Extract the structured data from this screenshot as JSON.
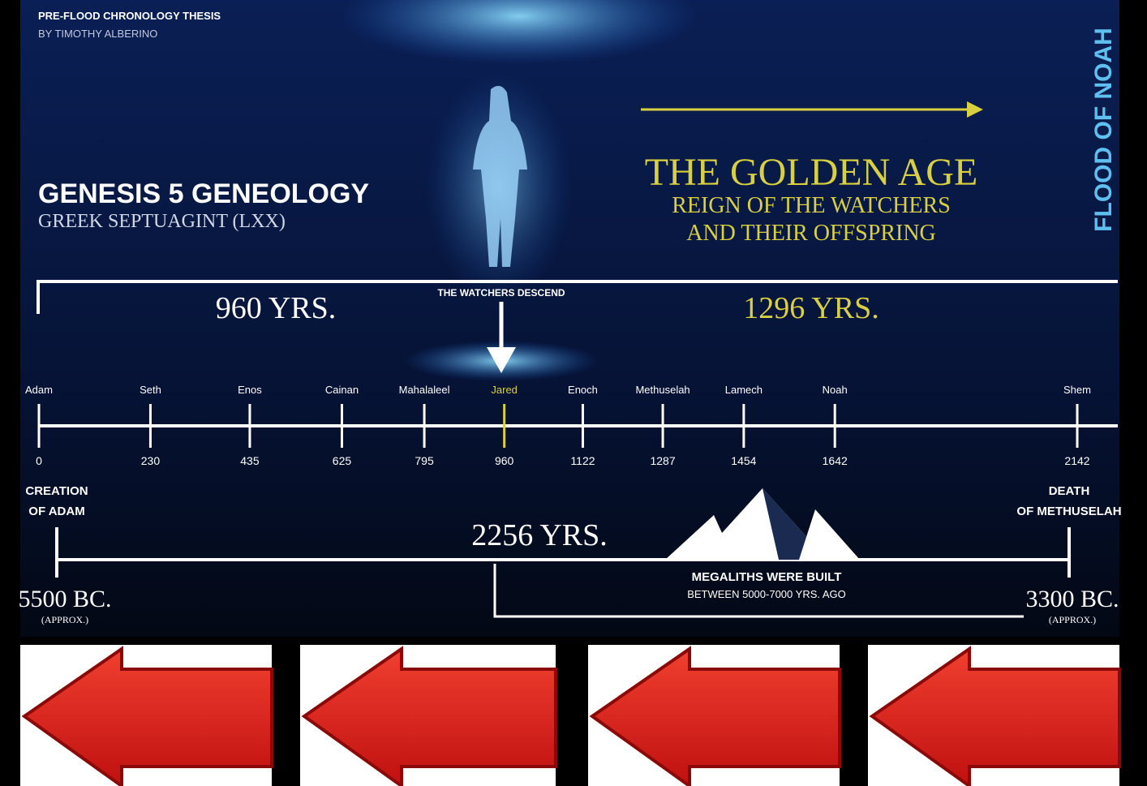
{
  "header": {
    "title": "PRE-FLOOD CHRONOLOGY THESIS",
    "author": "BY TIMOTHY ALBERINO"
  },
  "left": {
    "title": "GENESIS 5 GENEOLOGY",
    "subtitle": "GREEK SEPTUAGINT (LXX)"
  },
  "golden_age": {
    "title": "THE GOLDEN AGE",
    "line1": "REIGN OF THE WATCHERS",
    "line2": "AND THEIR OFFSPRING"
  },
  "flood": "FLOOD OF NOAH",
  "spans": {
    "first": "960 YRS.",
    "second": "1296 YRS.",
    "total": "2256 YRS."
  },
  "watchers": "THE WATCHERS DESCEND",
  "timeline": {
    "points": [
      {
        "name": "Adam",
        "year": 0,
        "color": "#ffffff"
      },
      {
        "name": "Seth",
        "year": 230,
        "color": "#ffffff"
      },
      {
        "name": "Enos",
        "year": 435,
        "color": "#ffffff"
      },
      {
        "name": "Cainan",
        "year": 625,
        "color": "#ffffff"
      },
      {
        "name": "Mahalaleel",
        "year": 795,
        "color": "#ffffff"
      },
      {
        "name": "Jared",
        "year": 960,
        "color": "#d8d040"
      },
      {
        "name": "Enoch",
        "year": 1122,
        "color": "#ffffff"
      },
      {
        "name": "Methuselah",
        "year": 1287,
        "color": "#ffffff"
      },
      {
        "name": "Lamech",
        "year": 1454,
        "color": "#ffffff"
      },
      {
        "name": "Noah",
        "year": 1642,
        "color": "#ffffff"
      },
      {
        "name": "Shem",
        "year": 2142,
        "color": "#ffffff"
      }
    ]
  },
  "start": {
    "label1": "CREATION",
    "label2": "OF ADAM",
    "date": "5500 BC.",
    "note": "(APPROX.)"
  },
  "end": {
    "label1": "DEATH",
    "label2": "OF METHUSELAH",
    "date": "3300 BC.",
    "note": "(APPROX.)"
  },
  "megaliths": {
    "line1": "MEGALITHS WERE BUILT",
    "line2": "BETWEEN 5000-7000 YRS. AGO"
  }
}
